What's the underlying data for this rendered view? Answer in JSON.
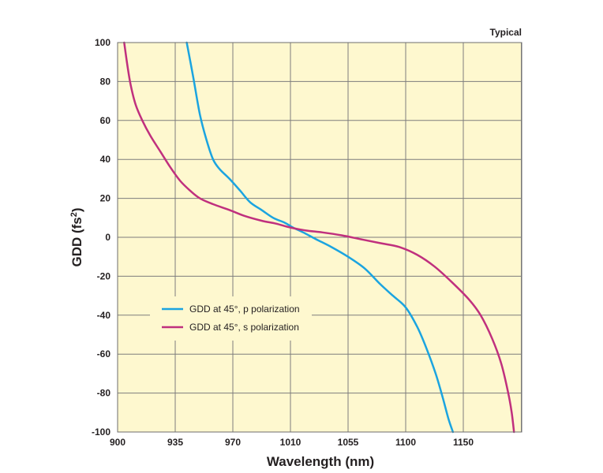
{
  "chart_data": {
    "type": "line",
    "title": "",
    "annotation": "Typical",
    "xlabel": "Wavelength (nm)",
    "ylabel_main": "GDD (fs",
    "ylabel_sup": "2",
    "ylabel_end": ")",
    "x_tick_labels": [
      "900",
      "935",
      "970",
      "1010",
      "1055",
      "1100",
      "1150"
    ],
    "y_ticks": [
      100,
      80,
      60,
      40,
      20,
      0,
      -20,
      -40,
      -60,
      -80,
      -100
    ],
    "y_tick_labels": [
      "100",
      "80",
      "60",
      "40",
      "20",
      "0",
      "-20",
      "-40",
      "-60",
      "-80",
      "-100"
    ],
    "ylim": [
      -100,
      100
    ],
    "grid": true,
    "colors": {
      "plot_bg": "#fef8cf",
      "grid": "#7d7d7d",
      "border": "#6d6d6d"
    },
    "legend_position": "lower-left",
    "series": [
      {
        "name": "GDD at 45°, p polarization",
        "color": "#1ba4e0",
        "points": [
          [
            942,
            100
          ],
          [
            946,
            82
          ],
          [
            950,
            63
          ],
          [
            954,
            50
          ],
          [
            958,
            40
          ],
          [
            962,
            35
          ],
          [
            968,
            30
          ],
          [
            975,
            24
          ],
          [
            982,
            18
          ],
          [
            990,
            14
          ],
          [
            998,
            10
          ],
          [
            1006,
            7.5
          ],
          [
            1012,
            5
          ],
          [
            1020,
            2.5
          ],
          [
            1030,
            -1
          ],
          [
            1042,
            -5
          ],
          [
            1055,
            -10
          ],
          [
            1068,
            -16
          ],
          [
            1080,
            -24
          ],
          [
            1090,
            -30
          ],
          [
            1100,
            -36
          ],
          [
            1110,
            -46
          ],
          [
            1118,
            -57
          ],
          [
            1126,
            -70
          ],
          [
            1132,
            -82
          ],
          [
            1137,
            -93
          ],
          [
            1141,
            -100
          ]
        ]
      },
      {
        "name": "GDD at 45°, s polarization",
        "color": "#c0307e",
        "points": [
          [
            904,
            100
          ],
          [
            906,
            88
          ],
          [
            908,
            78
          ],
          [
            911,
            68
          ],
          [
            915,
            60
          ],
          [
            920,
            52
          ],
          [
            926,
            44
          ],
          [
            932,
            36
          ],
          [
            938,
            29
          ],
          [
            944,
            24
          ],
          [
            950,
            20
          ],
          [
            958,
            17
          ],
          [
            968,
            14
          ],
          [
            978,
            11
          ],
          [
            990,
            8.5
          ],
          [
            1000,
            7
          ],
          [
            1010,
            5
          ],
          [
            1022,
            3.5
          ],
          [
            1035,
            2.5
          ],
          [
            1050,
            1
          ],
          [
            1065,
            -1
          ],
          [
            1080,
            -3
          ],
          [
            1095,
            -5
          ],
          [
            1110,
            -9
          ],
          [
            1125,
            -15
          ],
          [
            1140,
            -23
          ],
          [
            1155,
            -32
          ],
          [
            1165,
            -40
          ],
          [
            1175,
            -52
          ],
          [
            1183,
            -65
          ],
          [
            1189,
            -80
          ],
          [
            1192,
            -90
          ],
          [
            1194,
            -100
          ]
        ]
      }
    ]
  }
}
